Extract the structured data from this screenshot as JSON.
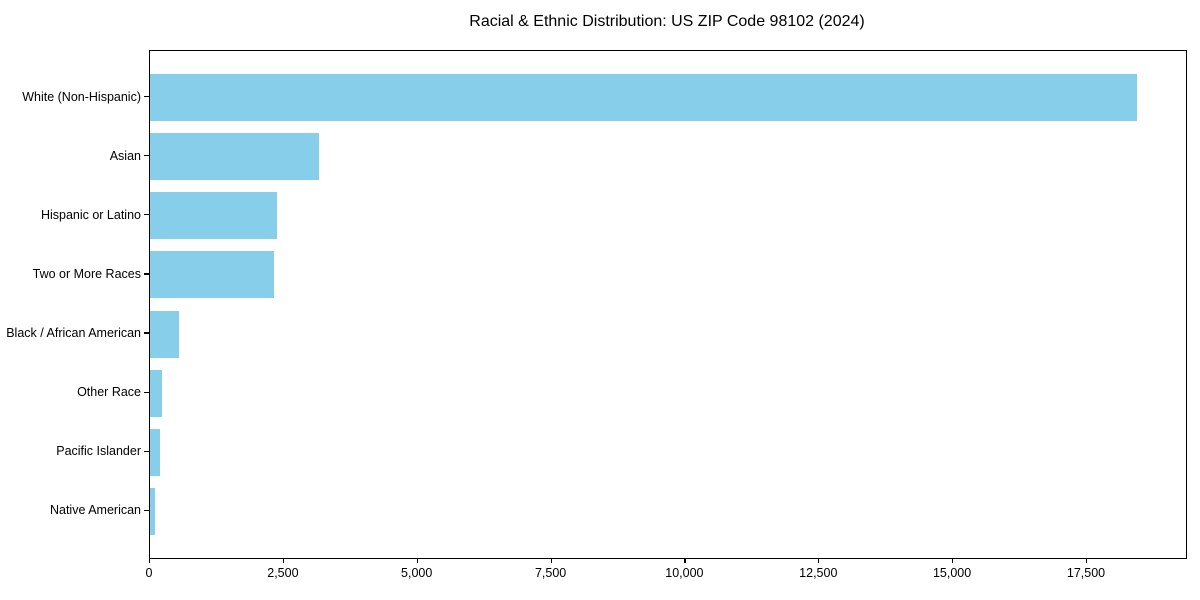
{
  "chart_data": {
    "type": "bar",
    "orientation": "horizontal",
    "title": "Racial & Ethnic Distribution: US ZIP Code 98102 (2024)",
    "categories": [
      "White (Non-Hispanic)",
      "Asian",
      "Hispanic or Latino",
      "Two or More Races",
      "Black / African American",
      "Other Race",
      "Pacific Islander",
      "Native American"
    ],
    "values": [
      18430,
      3150,
      2370,
      2310,
      540,
      225,
      190,
      95
    ],
    "xlabel": "",
    "ylabel": "",
    "xlim": [
      0,
      19350
    ],
    "xticks": [
      0,
      2500,
      5000,
      7500,
      10000,
      12500,
      15000,
      17500
    ],
    "xtick_labels": [
      "0",
      "2,500",
      "5,000",
      "7,500",
      "10,000",
      "12,500",
      "15,000",
      "17,500"
    ],
    "bar_color": "#87CEEB",
    "spine_color": "#000000",
    "grid": false,
    "legend": null
  }
}
